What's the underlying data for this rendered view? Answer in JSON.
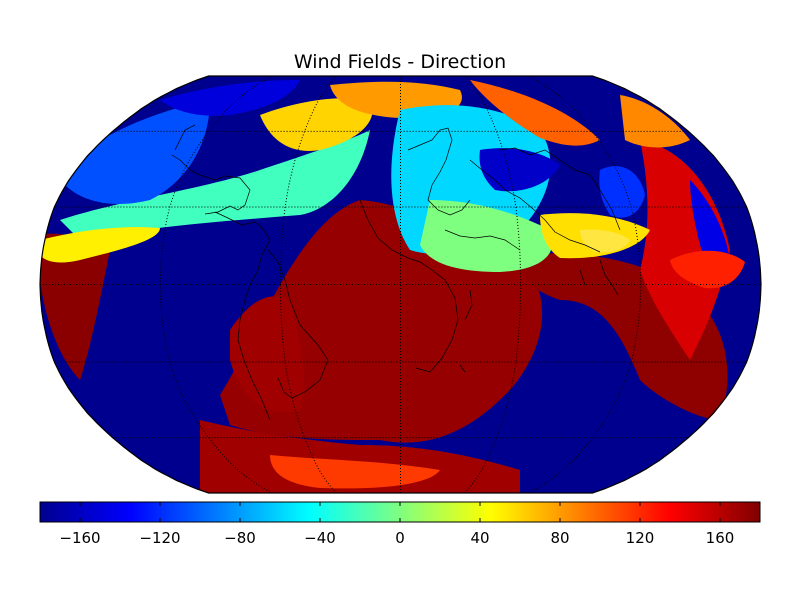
{
  "title": "Wind Fields - Direction",
  "colormap": "jet",
  "projection": "robinson",
  "colorbar": {
    "min": -180,
    "max": 180,
    "ticks": [
      -160,
      -120,
      -80,
      -40,
      0,
      40,
      80,
      120,
      160
    ],
    "tick_labels": [
      "−160",
      "−120",
      "−80",
      "−40",
      "0",
      "40",
      "80",
      "120",
      "160"
    ]
  },
  "graticule": {
    "style": "dotted",
    "lat_interval_deg": 30,
    "lon_interval_deg": 60
  },
  "colors": {
    "coastline": "#000000",
    "frame": "#000000",
    "background": "#ffffff"
  }
}
